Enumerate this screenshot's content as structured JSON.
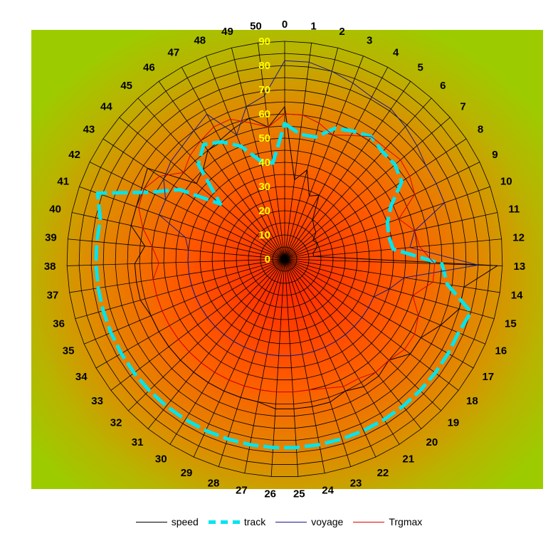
{
  "chart_data": {
    "type": "radar",
    "categories": [
      "0",
      "1",
      "2",
      "3",
      "4",
      "5",
      "6",
      "7",
      "8",
      "9",
      "10",
      "11",
      "12",
      "13",
      "14",
      "15",
      "16",
      "17",
      "18",
      "19",
      "20",
      "21",
      "22",
      "23",
      "24",
      "25",
      "26",
      "27",
      "28",
      "29",
      "30",
      "31",
      "32",
      "33",
      "34",
      "35",
      "36",
      "37",
      "38",
      "39",
      "40",
      "41",
      "42",
      "43",
      "44",
      "45",
      "46",
      "47",
      "48",
      "49",
      "50"
    ],
    "radial_ticks": [
      "0",
      "10",
      "20",
      "30",
      "40",
      "50",
      "60",
      "70",
      "80",
      "90"
    ],
    "rmax": 90,
    "rings": 18,
    "grid": true,
    "legend_position": "bottom",
    "series": [
      {
        "name": "speed",
        "color": "#000000",
        "values": [
          63,
          33,
          38,
          28,
          30,
          20,
          18,
          17,
          14,
          15,
          14,
          12,
          12,
          88,
          75,
          75,
          70,
          65,
          65,
          60,
          62,
          62,
          60,
          62,
          62,
          62,
          62,
          60,
          60,
          60,
          60,
          60,
          60,
          60,
          60,
          60,
          62,
          62,
          62,
          58,
          65,
          65,
          66,
          68,
          48,
          50,
          55,
          56,
          58,
          60,
          55
        ]
      },
      {
        "name": "track",
        "color": "#00e5ee",
        "values": [
          56,
          52,
          52,
          58,
          60,
          62,
          60,
          60,
          58,
          49,
          45,
          44,
          45,
          65,
          68,
          80,
          78,
          78,
          78,
          78,
          78,
          78,
          78,
          78,
          78,
          78,
          78,
          78,
          78,
          78,
          78,
          78,
          78,
          78,
          78,
          78,
          78,
          78,
          78,
          78,
          78,
          82,
          62,
          52,
          35,
          53,
          58,
          55,
          50,
          42,
          40
        ]
      },
      {
        "name": "voyage",
        "color": "#1a1a8a",
        "values": [
          82,
          82,
          80,
          78,
          76,
          76,
          74,
          72,
          70,
          70,
          70,
          55,
          52,
          80,
          50,
          45,
          40,
          40,
          40,
          40,
          40,
          40,
          40,
          40,
          40,
          40,
          40,
          40,
          40,
          40,
          40,
          40,
          40,
          40,
          40,
          40,
          40,
          40,
          40,
          40,
          42,
          55,
          55,
          60,
          62,
          63,
          65,
          68,
          55,
          65,
          68
        ]
      },
      {
        "name": "Trgmax",
        "color": "#e00000",
        "values": [
          60,
          60,
          58,
          55,
          58,
          62,
          62,
          63,
          62,
          60,
          50,
          55,
          56,
          62,
          62,
          55,
          60,
          62,
          62,
          60,
          60,
          58,
          58,
          56,
          55,
          55,
          55,
          55,
          55,
          55,
          55,
          55,
          55,
          55,
          55,
          55,
          55,
          55,
          52,
          55,
          60,
          64,
          65,
          62,
          55,
          58,
          60,
          62,
          62,
          58,
          55
        ]
      }
    ]
  }
}
